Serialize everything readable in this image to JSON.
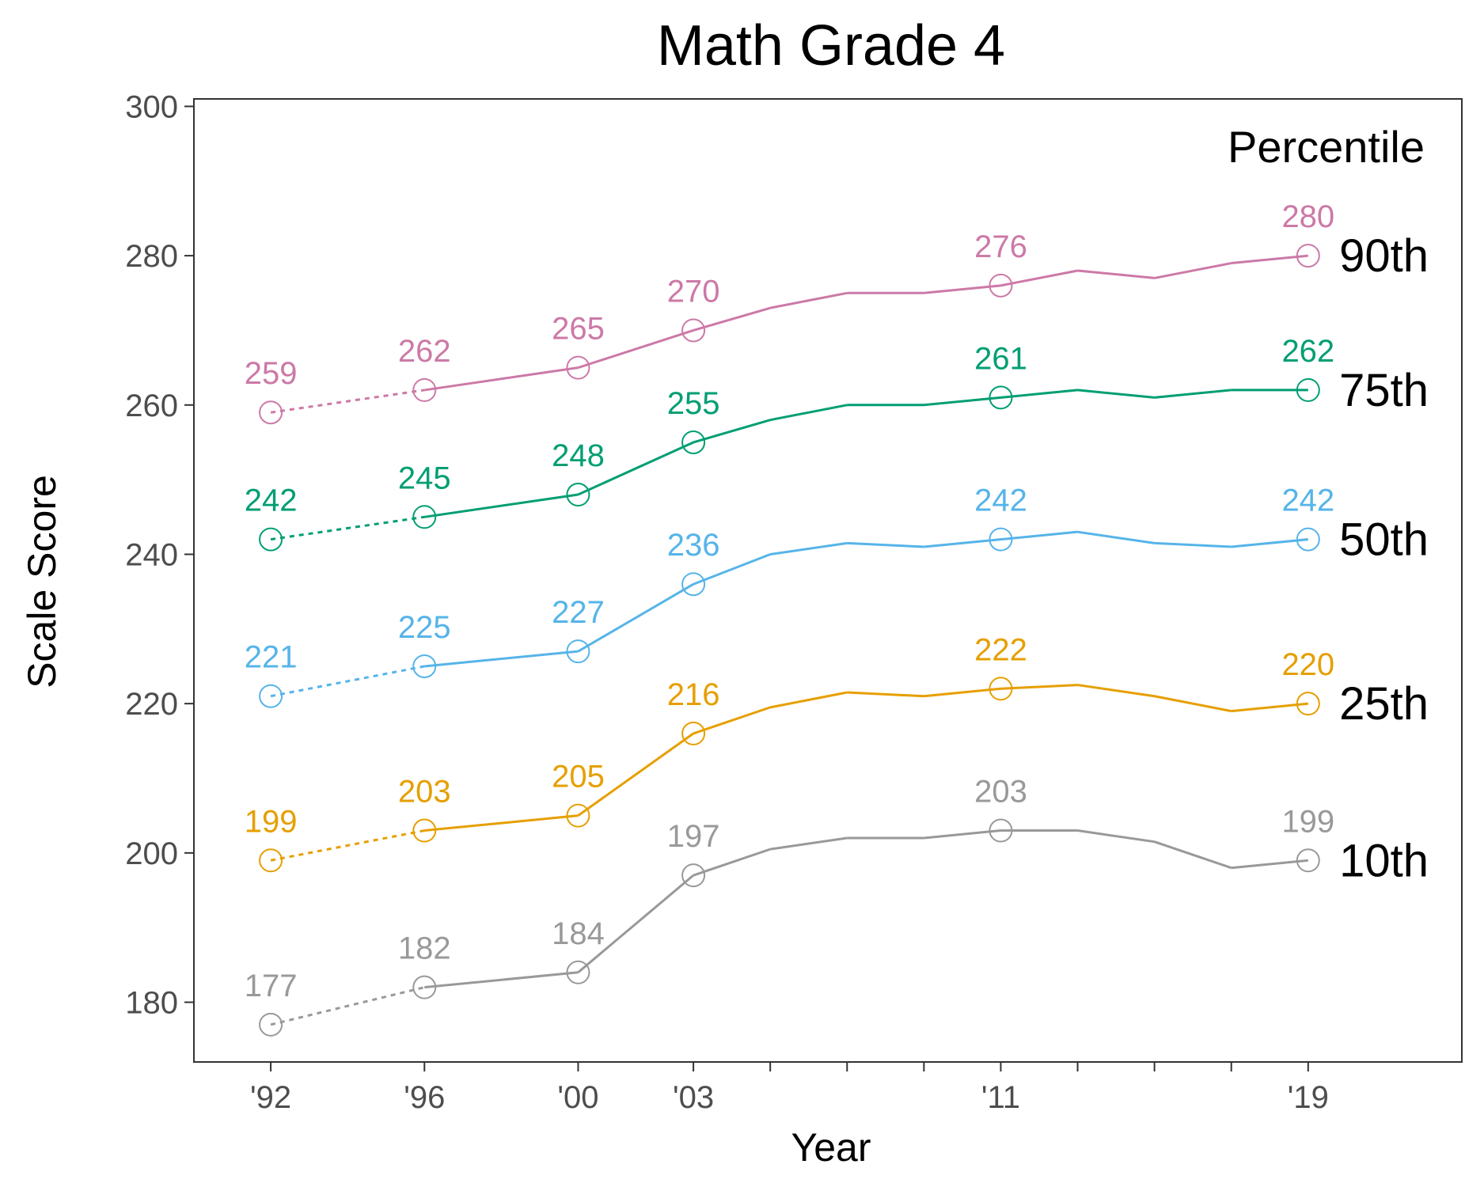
{
  "chart_data": {
    "type": "line",
    "title": "Math Grade 4",
    "xlabel": "Year",
    "ylabel": "Scale Score",
    "xlim": [
      1990,
      2023
    ],
    "ylim": [
      172,
      301
    ],
    "y_ticks": [
      180,
      200,
      220,
      240,
      260,
      280,
      300
    ],
    "x_ticks": [
      {
        "x": 1992,
        "label": "'92"
      },
      {
        "x": 1996,
        "label": "'96"
      },
      {
        "x": 2000,
        "label": "'00"
      },
      {
        "x": 2003,
        "label": "'03"
      },
      {
        "x": 2005,
        "label": ""
      },
      {
        "x": 2007,
        "label": ""
      },
      {
        "x": 2009,
        "label": ""
      },
      {
        "x": 2011,
        "label": "'11"
      },
      {
        "x": 2013,
        "label": ""
      },
      {
        "x": 2015,
        "label": ""
      },
      {
        "x": 2017,
        "label": ""
      },
      {
        "x": 2019,
        "label": "'19"
      }
    ],
    "legend_title": "Percentile",
    "legend_placement": "right",
    "grid": false,
    "dashed_until": 1996,
    "x": [
      1992,
      1996,
      2000,
      2003,
      2005,
      2007,
      2009,
      2011,
      2013,
      2015,
      2017,
      2019
    ],
    "series": [
      {
        "name": "90th",
        "color": "#CC79A7",
        "values": [
          259,
          262,
          265,
          270,
          273,
          275,
          275,
          276,
          278,
          277,
          279,
          280
        ],
        "labeled_years": [
          1992,
          1996,
          2000,
          2003,
          2011,
          2019
        ]
      },
      {
        "name": "75th",
        "color": "#009E73",
        "values": [
          242,
          245,
          248,
          255,
          258,
          260,
          260,
          261,
          262,
          261,
          262,
          262
        ],
        "labeled_years": [
          1992,
          1996,
          2000,
          2003,
          2011,
          2019
        ]
      },
      {
        "name": "50th",
        "color": "#56B4E9",
        "values": [
          221,
          225,
          227,
          236,
          240,
          241.5,
          241,
          242,
          243,
          241.5,
          241,
          242
        ],
        "labeled_years": [
          1992,
          1996,
          2000,
          2003,
          2011,
          2019
        ]
      },
      {
        "name": "25th",
        "color": "#E69F00",
        "values": [
          199,
          203,
          205,
          216,
          219.5,
          221.5,
          221,
          222,
          222.5,
          221,
          219,
          220
        ],
        "labeled_years": [
          1992,
          1996,
          2000,
          2003,
          2011,
          2019
        ]
      },
      {
        "name": "10th",
        "color": "#999999",
        "values": [
          177,
          182,
          184,
          197,
          200.5,
          202,
          202,
          203,
          203,
          201.5,
          198,
          199
        ],
        "labeled_years": [
          1992,
          1996,
          2000,
          2003,
          2011,
          2019
        ]
      }
    ]
  }
}
